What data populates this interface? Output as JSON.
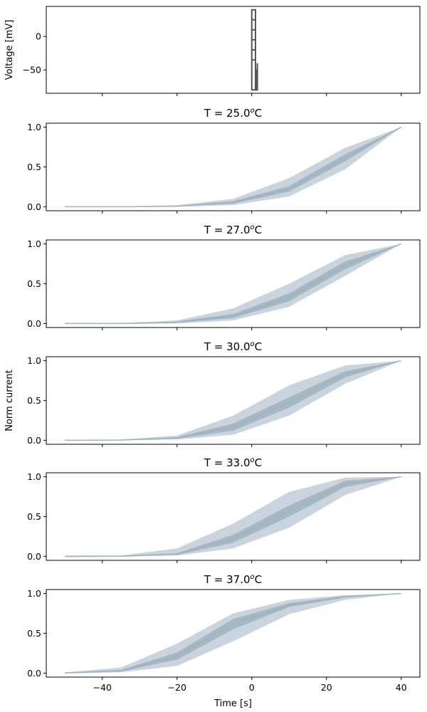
{
  "chart_data": [
    {
      "type": "line",
      "id": "voltage",
      "title": "",
      "ylabel": "Voltage [mV]",
      "xlabel": "",
      "xlim": [
        -55,
        45
      ],
      "ylim": [
        -85,
        45
      ],
      "yticks": [
        0,
        -50
      ],
      "ytick_labels": [
        "0",
        "−50"
      ],
      "xticks": [
        -40,
        -20,
        0,
        20,
        40
      ],
      "show_xtick_labels": false,
      "grid": false,
      "series": [
        {
          "color": "#555555",
          "x": [
            0,
            0,
            1,
            1,
            0,
            0,
            1,
            1,
            0,
            0,
            1,
            1,
            0,
            0,
            1,
            1,
            0,
            0,
            1,
            1,
            0,
            0,
            1,
            1,
            1.3,
            1.3,
            1.5,
            1.5
          ],
          "y": [
            -80,
            40,
            40,
            -80,
            -80,
            25,
            25,
            -80,
            -80,
            10,
            10,
            -80,
            -80,
            -5,
            -5,
            -80,
            -80,
            -20,
            -20,
            -80,
            -80,
            -35,
            -35,
            -50,
            -50,
            -80,
            -80,
            -40
          ]
        }
      ]
    },
    {
      "type": "area",
      "id": "t25",
      "title": "T = 25.0",
      "title_unit": "C",
      "title_super": "o",
      "xlim": [
        -55,
        45
      ],
      "ylim": [
        -0.05,
        1.05
      ],
      "yticks": [
        0.0,
        0.5,
        1.0
      ],
      "ytick_labels": [
        "0.0",
        "0.5",
        "1.0"
      ],
      "xticks": [
        -40,
        -20,
        0,
        20,
        40
      ],
      "show_xtick_labels": false,
      "x": [
        -50,
        -35,
        -20,
        -5,
        10,
        25,
        40
      ],
      "outer_low": [
        -0.005,
        -0.005,
        0.0,
        0.02,
        0.13,
        0.47,
        1.0
      ],
      "outer_high": [
        0.005,
        0.005,
        0.02,
        0.1,
        0.36,
        0.74,
        1.0
      ],
      "inner_low": [
        -0.002,
        -0.002,
        0.005,
        0.04,
        0.19,
        0.57,
        1.0
      ],
      "inner_high": [
        0.002,
        0.002,
        0.01,
        0.07,
        0.26,
        0.66,
        1.0
      ]
    },
    {
      "type": "area",
      "id": "t27",
      "title": "T = 27.0",
      "title_unit": "C",
      "title_super": "o",
      "xlim": [
        -55,
        45
      ],
      "ylim": [
        -0.05,
        1.05
      ],
      "yticks": [
        0.0,
        0.5,
        1.0
      ],
      "ytick_labels": [
        "0.0",
        "0.5",
        "1.0"
      ],
      "xticks": [
        -40,
        -20,
        0,
        20,
        40
      ],
      "show_xtick_labels": false,
      "x": [
        -50,
        -35,
        -20,
        -5,
        10,
        25,
        40
      ],
      "outer_low": [
        -0.005,
        -0.005,
        0.0,
        0.04,
        0.21,
        0.6,
        1.0
      ],
      "outer_high": [
        0.005,
        0.005,
        0.04,
        0.19,
        0.5,
        0.86,
        1.0
      ],
      "inner_low": [
        -0.002,
        -0.002,
        0.01,
        0.07,
        0.28,
        0.68,
        1.0
      ],
      "inner_high": [
        0.002,
        0.002,
        0.025,
        0.12,
        0.38,
        0.78,
        1.0
      ]
    },
    {
      "type": "area",
      "id": "t30",
      "title": "T = 30.0",
      "title_unit": "C",
      "title_super": "o",
      "ylabel": "Norm current",
      "xlim": [
        -55,
        45
      ],
      "ylim": [
        -0.05,
        1.05
      ],
      "yticks": [
        0.0,
        0.5,
        1.0
      ],
      "ytick_labels": [
        "0.0",
        "0.5",
        "1.0"
      ],
      "xticks": [
        -40,
        -20,
        0,
        20,
        40
      ],
      "show_xtick_labels": false,
      "x": [
        -50,
        -35,
        -20,
        -5,
        10,
        25,
        40
      ],
      "outer_low": [
        -0.005,
        -0.002,
        0.01,
        0.07,
        0.31,
        0.71,
        1.0
      ],
      "outer_high": [
        0.005,
        0.01,
        0.06,
        0.31,
        0.69,
        0.94,
        1.0
      ],
      "inner_low": [
        -0.002,
        0.0,
        0.02,
        0.12,
        0.41,
        0.79,
        1.0
      ],
      "inner_high": [
        0.002,
        0.005,
        0.04,
        0.21,
        0.54,
        0.87,
        1.0
      ]
    },
    {
      "type": "area",
      "id": "t33",
      "title": "T = 33.0",
      "title_unit": "C",
      "title_super": "o",
      "xlim": [
        -55,
        45
      ],
      "ylim": [
        -0.05,
        1.05
      ],
      "yticks": [
        0.0,
        0.5,
        1.0
      ],
      "ytick_labels": [
        "0.0",
        "0.5",
        "1.0"
      ],
      "xticks": [
        -40,
        -20,
        0,
        20,
        40
      ],
      "show_xtick_labels": false,
      "x": [
        -50,
        -35,
        -20,
        -5,
        10,
        25,
        40
      ],
      "outer_low": [
        -0.01,
        -0.005,
        0.01,
        0.1,
        0.36,
        0.77,
        1.0
      ],
      "outer_high": [
        0.01,
        0.01,
        0.1,
        0.41,
        0.81,
        0.99,
        1.0
      ],
      "inner_low": [
        -0.003,
        0.0,
        0.02,
        0.17,
        0.5,
        0.87,
        1.0
      ],
      "inner_high": [
        0.003,
        0.005,
        0.04,
        0.27,
        0.64,
        0.95,
        1.0
      ]
    },
    {
      "type": "area",
      "id": "t37",
      "title": "T = 37.0",
      "title_unit": "C",
      "title_super": "o",
      "xlabel": "Time [s]",
      "xlim": [
        -55,
        45
      ],
      "ylim": [
        -0.05,
        1.05
      ],
      "yticks": [
        0.0,
        0.5,
        1.0
      ],
      "ytick_labels": [
        "0.0",
        "0.5",
        "1.0"
      ],
      "xticks": [
        -40,
        -20,
        0,
        20,
        40
      ],
      "xtick_labels": [
        "−40",
        "−20",
        "0",
        "20",
        "40"
      ],
      "show_xtick_labels": true,
      "x": [
        -50,
        -35,
        -20,
        -5,
        10,
        25,
        40
      ],
      "outer_low": [
        -0.005,
        0.01,
        0.09,
        0.4,
        0.74,
        0.92,
        1.0
      ],
      "outer_high": [
        0.01,
        0.07,
        0.37,
        0.75,
        0.92,
        0.98,
        1.0
      ],
      "inner_low": [
        0.0,
        0.02,
        0.17,
        0.55,
        0.83,
        0.95,
        1.0
      ],
      "inner_high": [
        0.005,
        0.04,
        0.26,
        0.68,
        0.88,
        0.97,
        1.0
      ]
    }
  ],
  "colors": {
    "outer_band": "#c0ccd9",
    "inner_band": "#9fb3bf",
    "center_line": "#9fb3bf",
    "voltage_line": "#555555"
  }
}
